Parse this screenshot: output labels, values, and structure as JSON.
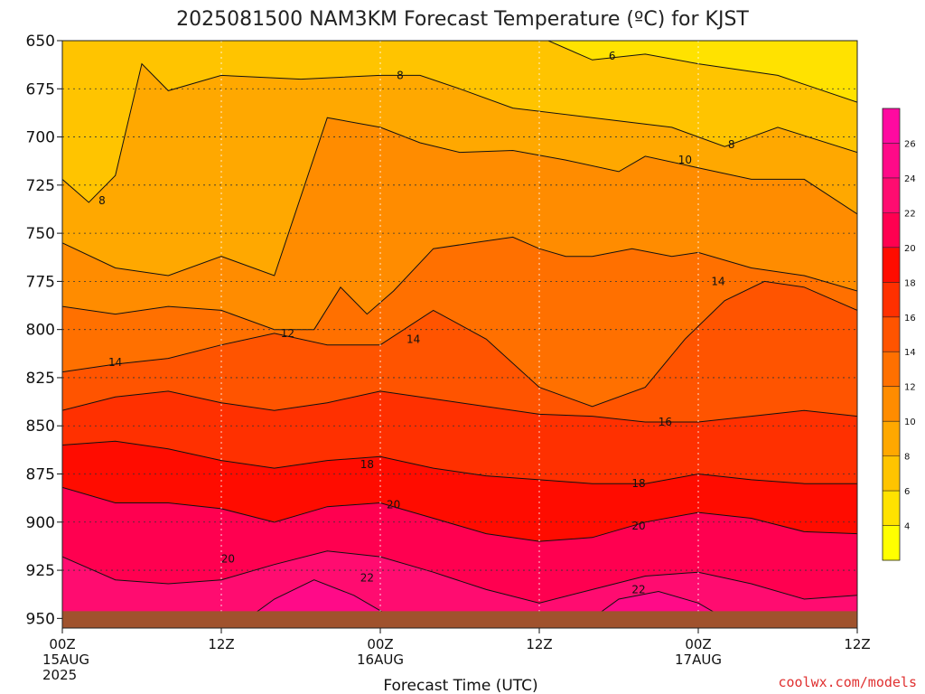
{
  "chart_data": {
    "type": "heatmap",
    "title": "2025081500 NAM3KM Forecast Temperature (ºC) for KJST",
    "xlabel": "Forecast Time (UTC)",
    "ylabel": "",
    "x_range_hours": [
      0,
      60
    ],
    "y_range_hpa": [
      650,
      955
    ],
    "y_inverted": true,
    "yticks": [
      "650",
      "675",
      "700",
      "725",
      "750",
      "775",
      "800",
      "825",
      "850",
      "875",
      "900",
      "925",
      "950"
    ],
    "xticks": [
      {
        "hour": 0,
        "lines": [
          "00Z",
          "15AUG",
          "2025"
        ]
      },
      {
        "hour": 12,
        "lines": [
          "12Z"
        ]
      },
      {
        "hour": 24,
        "lines": [
          "00Z",
          "16AUG"
        ]
      },
      {
        "hour": 36,
        "lines": [
          "12Z"
        ]
      },
      {
        "hour": 48,
        "lines": [
          "00Z",
          "17AUG"
        ]
      },
      {
        "hour": 60,
        "lines": [
          "12Z"
        ]
      }
    ],
    "grid": true,
    "ground": {
      "color": "#a0522d",
      "level_hpa": 950
    },
    "color_levels": [
      {
        "min": 2,
        "max": 4,
        "color": "#ffff00"
      },
      {
        "min": 4,
        "max": 6,
        "color": "#ffe200"
      },
      {
        "min": 6,
        "max": 8,
        "color": "#ffc400"
      },
      {
        "min": 8,
        "max": 10,
        "color": "#ffa800"
      },
      {
        "min": 10,
        "max": 12,
        "color": "#ff8c00"
      },
      {
        "min": 12,
        "max": 14,
        "color": "#ff7000"
      },
      {
        "min": 14,
        "max": 16,
        "color": "#ff5400"
      },
      {
        "min": 16,
        "max": 18,
        "color": "#ff3000"
      },
      {
        "min": 18,
        "max": 20,
        "color": "#ff0c00"
      },
      {
        "min": 20,
        "max": 22,
        "color": "#ff0050"
      },
      {
        "min": 22,
        "max": 24,
        "color": "#ff0c70"
      },
      {
        "min": 24,
        "max": 26,
        "color": "#ff0a88"
      },
      {
        "min": 26,
        "max": 28,
        "color": "#ff0aa0"
      }
    ],
    "colorbar_labels": [
      "4",
      "6",
      "8",
      "10",
      "12",
      "14",
      "16",
      "18",
      "20",
      "22",
      "24",
      "26"
    ],
    "contour_interval": 2,
    "isotherms": [
      {
        "value": 6,
        "points": [
          [
            0,
            636
          ],
          [
            6,
            636
          ],
          [
            12,
            636
          ],
          [
            18,
            636
          ],
          [
            24,
            642
          ],
          [
            30,
            643
          ],
          [
            36,
            648
          ],
          [
            40,
            660
          ],
          [
            44,
            657
          ],
          [
            48,
            662
          ],
          [
            54,
            668
          ],
          [
            60,
            682
          ]
        ]
      },
      {
        "value": 8,
        "points": [
          [
            0,
            722
          ],
          [
            2,
            734
          ],
          [
            4,
            720
          ],
          [
            6,
            662
          ],
          [
            8,
            676
          ],
          [
            12,
            668
          ],
          [
            18,
            670
          ],
          [
            24,
            668
          ],
          [
            27,
            668
          ],
          [
            30,
            675
          ],
          [
            34,
            685
          ],
          [
            40,
            690
          ],
          [
            46,
            695
          ],
          [
            50,
            705
          ],
          [
            54,
            695
          ],
          [
            60,
            708
          ]
        ]
      },
      {
        "value": 10,
        "points": [
          [
            0,
            755
          ],
          [
            4,
            768
          ],
          [
            8,
            772
          ],
          [
            12,
            762
          ],
          [
            16,
            772
          ],
          [
            20,
            690
          ],
          [
            24,
            695
          ],
          [
            27,
            703
          ],
          [
            30,
            708
          ],
          [
            34,
            707
          ],
          [
            38,
            712
          ],
          [
            42,
            718
          ],
          [
            44,
            710
          ],
          [
            48,
            716
          ],
          [
            52,
            722
          ],
          [
            56,
            722
          ],
          [
            60,
            740
          ]
        ]
      },
      {
        "value": 12,
        "points": [
          [
            0,
            788
          ],
          [
            4,
            792
          ],
          [
            8,
            788
          ],
          [
            12,
            790
          ],
          [
            16,
            800
          ],
          [
            19,
            800
          ],
          [
            21,
            778
          ],
          [
            23,
            792
          ],
          [
            25,
            780
          ],
          [
            28,
            758
          ],
          [
            31,
            755
          ],
          [
            34,
            752
          ],
          [
            36,
            758
          ],
          [
            38,
            762
          ],
          [
            40,
            762
          ],
          [
            43,
            758
          ],
          [
            46,
            762
          ],
          [
            48,
            760
          ],
          [
            52,
            768
          ],
          [
            56,
            772
          ],
          [
            60,
            780
          ]
        ]
      },
      {
        "value": 14,
        "points": [
          [
            0,
            822
          ],
          [
            4,
            818
          ],
          [
            8,
            815
          ],
          [
            12,
            808
          ],
          [
            16,
            802
          ],
          [
            20,
            808
          ],
          [
            24,
            808
          ],
          [
            28,
            790
          ],
          [
            32,
            805
          ],
          [
            36,
            830
          ],
          [
            40,
            840
          ],
          [
            44,
            830
          ],
          [
            47,
            805
          ],
          [
            50,
            785
          ],
          [
            53,
            775
          ],
          [
            56,
            778
          ],
          [
            60,
            790
          ]
        ]
      },
      {
        "value": 16,
        "points": [
          [
            0,
            842
          ],
          [
            4,
            835
          ],
          [
            8,
            832
          ],
          [
            12,
            838
          ],
          [
            16,
            842
          ],
          [
            20,
            838
          ],
          [
            24,
            832
          ],
          [
            28,
            836
          ],
          [
            32,
            840
          ],
          [
            36,
            844
          ],
          [
            40,
            845
          ],
          [
            44,
            848
          ],
          [
            48,
            848
          ],
          [
            52,
            845
          ],
          [
            56,
            842
          ],
          [
            60,
            845
          ]
        ]
      },
      {
        "value": 18,
        "points": [
          [
            0,
            860
          ],
          [
            4,
            858
          ],
          [
            8,
            862
          ],
          [
            12,
            868
          ],
          [
            16,
            872
          ],
          [
            20,
            868
          ],
          [
            24,
            866
          ],
          [
            28,
            872
          ],
          [
            32,
            876
          ],
          [
            36,
            878
          ],
          [
            40,
            880
          ],
          [
            44,
            880
          ],
          [
            48,
            875
          ],
          [
            52,
            878
          ],
          [
            56,
            880
          ],
          [
            60,
            880
          ]
        ]
      },
      {
        "value": 20,
        "points": [
          [
            0,
            882
          ],
          [
            4,
            890
          ],
          [
            8,
            890
          ],
          [
            12,
            893
          ],
          [
            16,
            900
          ],
          [
            20,
            892
          ],
          [
            24,
            890
          ],
          [
            28,
            898
          ],
          [
            32,
            906
          ],
          [
            36,
            910
          ],
          [
            40,
            908
          ],
          [
            44,
            900
          ],
          [
            48,
            895
          ],
          [
            52,
            898
          ],
          [
            56,
            905
          ],
          [
            60,
            906
          ]
        ]
      },
      {
        "value": 22,
        "points": [
          [
            0,
            918
          ],
          [
            4,
            930
          ],
          [
            8,
            932
          ],
          [
            12,
            930
          ],
          [
            16,
            922
          ],
          [
            20,
            915
          ],
          [
            24,
            918
          ],
          [
            28,
            926
          ],
          [
            32,
            935
          ],
          [
            36,
            942
          ],
          [
            40,
            935
          ],
          [
            44,
            928
          ],
          [
            48,
            926
          ],
          [
            52,
            932
          ],
          [
            56,
            940
          ],
          [
            60,
            938
          ]
        ]
      },
      {
        "value": 24,
        "points": [
          [
            14,
            950
          ],
          [
            16,
            940
          ],
          [
            19,
            930
          ],
          [
            22,
            938
          ],
          [
            25,
            950
          ]
        ]
      },
      {
        "value": 24,
        "points": [
          [
            40,
            950
          ],
          [
            42,
            940
          ],
          [
            45,
            936
          ],
          [
            48,
            942
          ],
          [
            50,
            950
          ]
        ]
      }
    ],
    "contour_labels": [
      {
        "text": "6",
        "x": 41.5,
        "y": 658
      },
      {
        "text": "8",
        "x": 25.5,
        "y": 668
      },
      {
        "text": "8",
        "x": 3.0,
        "y": 733
      },
      {
        "text": "8",
        "x": 50.5,
        "y": 704
      },
      {
        "text": "10",
        "x": 47.0,
        "y": 712
      },
      {
        "text": "12",
        "x": 17.0,
        "y": 802
      },
      {
        "text": "14",
        "x": 4.0,
        "y": 817
      },
      {
        "text": "14",
        "x": 26.5,
        "y": 805
      },
      {
        "text": "14",
        "x": 49.5,
        "y": 775
      },
      {
        "text": "16",
        "x": 45.5,
        "y": 848
      },
      {
        "text": "18",
        "x": 23.0,
        "y": 870
      },
      {
        "text": "18",
        "x": 43.5,
        "y": 880
      },
      {
        "text": "20",
        "x": 25.0,
        "y": 891
      },
      {
        "text": "20",
        "x": 43.5,
        "y": 902
      },
      {
        "text": "20",
        "x": 12.5,
        "y": 919
      },
      {
        "text": "22",
        "x": 23.0,
        "y": 929
      },
      {
        "text": "22",
        "x": 43.5,
        "y": 935
      }
    ]
  },
  "credit": "coolwx.com/models"
}
